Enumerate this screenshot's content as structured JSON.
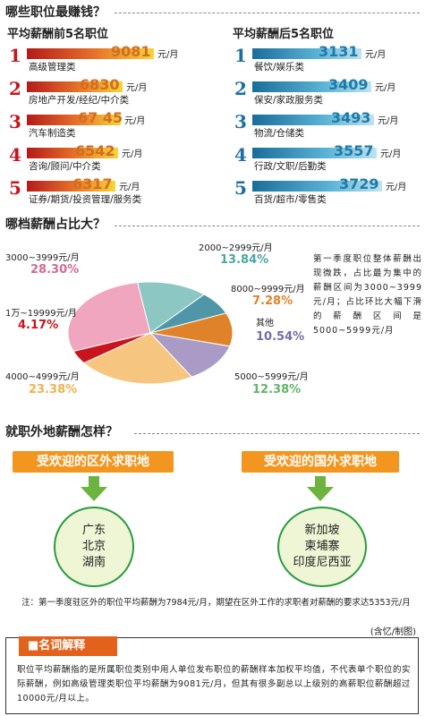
{
  "sections": {
    "s1_title": "哪些职位最赚钱？",
    "s2_title": "哪档薪酬占比大？",
    "s3_title": "就职外地薪酬怎样？"
  },
  "top5": {
    "title": "平均薪酬前5名职位",
    "unit": "元/月",
    "items": [
      {
        "rank": "1",
        "value": 9081,
        "value_text": "9081",
        "label": "高级管理类"
      },
      {
        "rank": "2",
        "value": 6830,
        "value_text": "6830",
        "label": "房地产开发/经纪/中介类"
      },
      {
        "rank": "3",
        "value": 6745,
        "value_text": "67 45",
        "label": "汽车制造类"
      },
      {
        "rank": "4",
        "value": 6542,
        "value_text": "6542",
        "label": "咨询/顾问/中介类"
      },
      {
        "rank": "5",
        "value": 6317,
        "value_text": "6317",
        "label": "证券/期货/投资管理/服务类"
      }
    ]
  },
  "bottom5": {
    "title": "平均薪酬后5名职位",
    "unit": "元/月",
    "items": [
      {
        "rank": "1",
        "value": 3131,
        "value_text": "3131",
        "label": "餐饮/娱乐类"
      },
      {
        "rank": "2",
        "value": 3409,
        "value_text": "3409",
        "label": "保安/家政服务类"
      },
      {
        "rank": "3",
        "value": 3493,
        "value_text": "3493",
        "label": "物流/仓储类"
      },
      {
        "rank": "4",
        "value": 3557,
        "value_text": "3557",
        "label": "行政/文职/后勤类"
      },
      {
        "rank": "5",
        "value": 3729,
        "value_text": "3729",
        "label": "百货/超市/零售类"
      }
    ]
  },
  "chart_data": {
    "type": "pie",
    "slices": [
      {
        "label": "2000~2999元/月",
        "value": 13.84,
        "pct_text": "13.84%",
        "color": "#8cc7c4"
      },
      {
        "label": "8000~9999元/月",
        "value": 7.28,
        "pct_text": "7.28%",
        "color": "#4f97a8"
      },
      {
        "label": "其他",
        "value": 10.54,
        "pct_text": "10.54%",
        "color": "#e0822a"
      },
      {
        "label": "5000~5999元/月",
        "value": 12.38,
        "pct_text": "12.38%",
        "color": "#a99bc6"
      },
      {
        "label": "4000~4999元/月",
        "value": 23.38,
        "pct_text": "23.38%",
        "color": "#f6c57f"
      },
      {
        "label": "1万~19999元/月",
        "value": 4.17,
        "pct_text": "4.17%",
        "color": "#c8151d"
      },
      {
        "label": "3000~3999元/月",
        "value": 28.3,
        "pct_text": "28.30%",
        "color": "#f0a6bf"
      }
    ]
  },
  "pie_note": "第一季度职位整体薪酬出现微跌，占比最为集中的薪酬区间为3000~3999元/月；占比环比大幅下滑的薪酬区间是5000~5999元/月",
  "destinations": {
    "domestic_title": "受欢迎的区外求职地",
    "domestic": [
      "广东",
      "北京",
      "湖南"
    ],
    "overseas_title": "受欢迎的国外求职地",
    "overseas": [
      "新加坡",
      "柬埔寨",
      "印度尼西亚"
    ]
  },
  "footnote": "注：第一季度驻区外的职位平均薪酬为7984元/月，期望在区外工作的求职者对薪酬的要求达5353元/月",
  "credit": "(含忆/制图)",
  "term": {
    "tag": "■名词解释",
    "text": "职位平均薪酬指的是所属职位类别中用人单位发布职位的薪酬样本加权平均值，不代表单个职位的实际薪酬，例如高级管理类职位平均薪酬为9081元/月，但其有很多副总以上级别的高薪职位薪酬超过10000元/月以上。"
  },
  "colors": {
    "rank_red": "#c8151d",
    "rank_blue": "#1b6fa3",
    "value_left": "#d26e1f",
    "value_right": "#1f7aa9",
    "arrow_green": "#6db33f"
  }
}
